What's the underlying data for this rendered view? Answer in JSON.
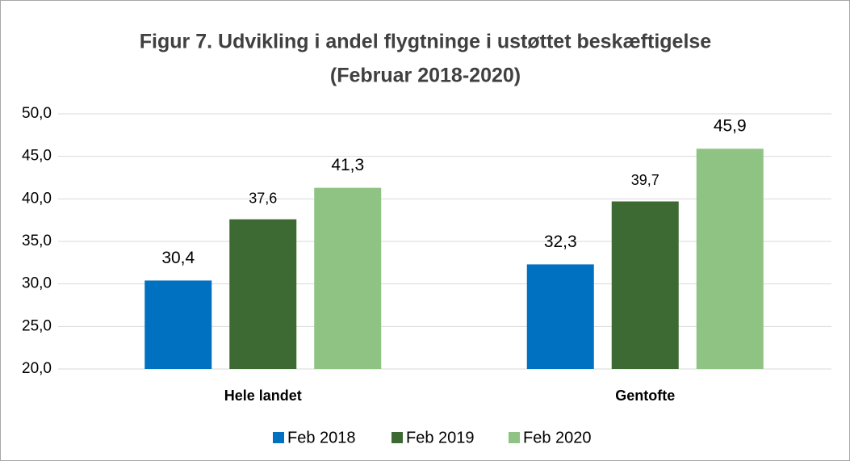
{
  "chart_data": {
    "type": "bar",
    "title": "Figur 7. Udvikling i andel flygtninge i ustøttet beskæftigelse",
    "subtitle": "(Februar 2018-2020)",
    "categories": [
      "Hele landet",
      "Gentofte"
    ],
    "series": [
      {
        "name": "Feb 2018",
        "color": "#0070c0",
        "values": [
          30.4,
          32.3
        ],
        "value_labels": [
          "30,4",
          "32,3"
        ]
      },
      {
        "name": "Feb 2019",
        "color": "#3c6a32",
        "values": [
          37.6,
          39.7
        ],
        "value_labels": [
          "37,6",
          "39,7"
        ]
      },
      {
        "name": "Feb 2020",
        "color": "#8fc383",
        "values": [
          41.3,
          45.9
        ],
        "value_labels": [
          "41,3",
          "45,9"
        ]
      }
    ],
    "ylim": [
      20,
      50
    ],
    "yticks": [
      {
        "value": 20,
        "label": "20,0"
      },
      {
        "value": 25,
        "label": "25,0"
      },
      {
        "value": 30,
        "label": "30,0"
      },
      {
        "value": 35,
        "label": "35,0"
      },
      {
        "value": 40,
        "label": "40,0"
      },
      {
        "value": 45,
        "label": "45,0"
      },
      {
        "value": 50,
        "label": "50,0"
      }
    ],
    "grid": true,
    "legend": "bottom"
  }
}
